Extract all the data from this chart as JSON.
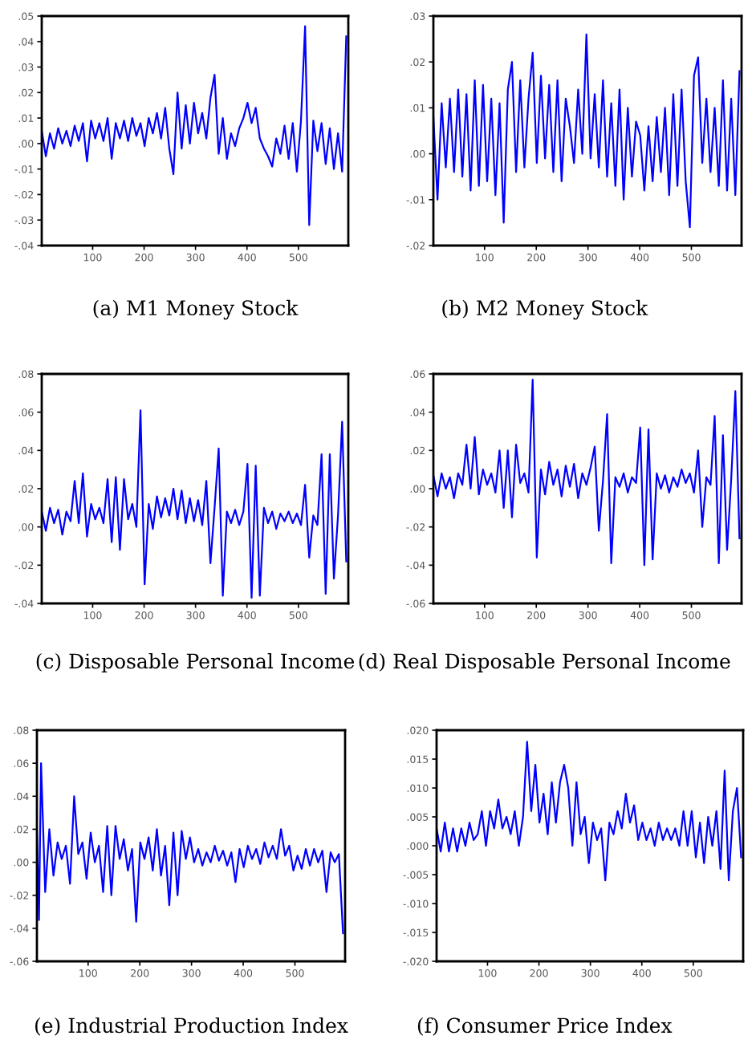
{
  "chart_data": [
    {
      "type": "line",
      "title": "(a) M1 Money Stock",
      "xlim": [
        1,
        597
      ],
      "xticks": [
        100,
        200,
        300,
        400,
        500
      ],
      "ylim": [
        -0.04,
        0.05
      ],
      "yticks": [
        {
          "value": 0.05,
          "label": ".05"
        },
        {
          "value": 0.04,
          "label": ".04"
        },
        {
          "value": 0.03,
          "label": ".03"
        },
        {
          "value": 0.02,
          "label": ".02"
        },
        {
          "value": 0.01,
          "label": ".01"
        },
        {
          "value": 0.0,
          "label": ".00"
        },
        {
          "value": -0.01,
          "label": "-.01"
        },
        {
          "value": -0.02,
          "label": "-.02"
        },
        {
          "value": -0.03,
          "label": "-.03"
        },
        {
          "value": -0.04,
          "label": "-.04"
        }
      ],
      "grid": false,
      "x": [
        1,
        9,
        17,
        25,
        33,
        41,
        49,
        57,
        65,
        73,
        81,
        89,
        97,
        105,
        113,
        121,
        129,
        137,
        145,
        153,
        161,
        169,
        177,
        185,
        193,
        201,
        209,
        217,
        225,
        233,
        241,
        249,
        257,
        265,
        273,
        281,
        289,
        297,
        305,
        313,
        321,
        329,
        337,
        345,
        353,
        361,
        369,
        377,
        385,
        393,
        401,
        409,
        417,
        425,
        433,
        441,
        449,
        457,
        465,
        473,
        481,
        489,
        497,
        505,
        513,
        521,
        529,
        537,
        545,
        553,
        561,
        569,
        577,
        585,
        593
      ],
      "series": [
        {
          "color": "#0000ff",
          "values": [
            0.005,
            -0.005,
            0.004,
            -0.002,
            0.006,
            0.0,
            0.005,
            -0.001,
            0.007,
            0.001,
            0.008,
            -0.007,
            0.009,
            0.002,
            0.008,
            0.001,
            0.01,
            -0.006,
            0.008,
            0.002,
            0.009,
            0.001,
            0.01,
            0.003,
            0.008,
            -0.001,
            0.01,
            0.004,
            0.012,
            0.002,
            0.014,
            -0.002,
            -0.012,
            0.02,
            -0.002,
            0.015,
            0.0,
            0.016,
            0.004,
            0.012,
            0.002,
            0.018,
            0.027,
            -0.004,
            0.01,
            -0.006,
            0.004,
            -0.001,
            0.006,
            0.01,
            0.016,
            0.008,
            0.014,
            0.002,
            -0.002,
            -0.005,
            -0.009,
            0.002,
            -0.004,
            0.007,
            -0.006,
            0.008,
            -0.011,
            0.009,
            0.046,
            -0.032,
            0.009,
            -0.003,
            0.008,
            -0.008,
            0.006,
            -0.01,
            0.004,
            -0.011,
            0.042
          ]
        }
      ]
    },
    {
      "type": "line",
      "title": "(b) M2 Money Stock",
      "xlim": [
        1,
        597
      ],
      "xticks": [
        100,
        200,
        300,
        400,
        500
      ],
      "ylim": [
        -0.02,
        0.03
      ],
      "yticks": [
        {
          "value": 0.03,
          "label": ".03"
        },
        {
          "value": 0.02,
          "label": ".02"
        },
        {
          "value": 0.01,
          "label": ".01"
        },
        {
          "value": 0.0,
          "label": ".00"
        },
        {
          "value": -0.01,
          "label": "-.01"
        },
        {
          "value": -0.02,
          "label": "-.02"
        }
      ],
      "grid": false,
      "x": [
        1,
        9,
        17,
        25,
        33,
        41,
        49,
        57,
        65,
        73,
        81,
        89,
        97,
        105,
        113,
        121,
        129,
        137,
        145,
        153,
        161,
        169,
        177,
        185,
        193,
        201,
        209,
        217,
        225,
        233,
        241,
        249,
        257,
        265,
        273,
        281,
        289,
        297,
        305,
        313,
        321,
        329,
        337,
        345,
        353,
        361,
        369,
        377,
        385,
        393,
        401,
        409,
        417,
        425,
        433,
        441,
        449,
        457,
        465,
        473,
        481,
        489,
        497,
        505,
        513,
        521,
        529,
        537,
        545,
        553,
        561,
        569,
        577,
        585,
        593
      ],
      "series": [
        {
          "color": "#0000ff",
          "values": [
            0.008,
            -0.01,
            0.011,
            -0.003,
            0.012,
            -0.004,
            0.014,
            -0.005,
            0.013,
            -0.008,
            0.016,
            -0.007,
            0.015,
            -0.006,
            0.012,
            -0.009,
            0.011,
            -0.015,
            0.014,
            0.02,
            -0.004,
            0.016,
            -0.003,
            0.012,
            0.022,
            -0.002,
            0.017,
            -0.001,
            0.015,
            -0.004,
            0.016,
            -0.006,
            0.012,
            0.006,
            -0.002,
            0.014,
            0.0,
            0.026,
            -0.001,
            0.013,
            -0.003,
            0.016,
            -0.005,
            0.011,
            -0.007,
            0.014,
            -0.01,
            0.01,
            -0.005,
            0.007,
            0.004,
            -0.008,
            0.006,
            -0.006,
            0.008,
            -0.004,
            0.01,
            -0.009,
            0.013,
            -0.007,
            0.014,
            -0.006,
            -0.016,
            0.017,
            0.021,
            -0.002,
            0.012,
            -0.004,
            0.01,
            -0.007,
            0.016,
            -0.008,
            0.012,
            -0.009,
            0.018
          ]
        }
      ]
    },
    {
      "type": "line",
      "title": "(c) Disposable Personal Income",
      "xlim": [
        1,
        597
      ],
      "xticks": [
        100,
        200,
        300,
        400,
        500
      ],
      "ylim": [
        -0.04,
        0.08
      ],
      "yticks": [
        {
          "value": 0.08,
          "label": ".08"
        },
        {
          "value": 0.06,
          "label": ".06"
        },
        {
          "value": 0.04,
          "label": ".04"
        },
        {
          "value": 0.02,
          "label": ".02"
        },
        {
          "value": 0.0,
          "label": ".00"
        },
        {
          "value": -0.02,
          "label": "-.02"
        },
        {
          "value": -0.04,
          "label": "-.04"
        }
      ],
      "grid": false,
      "x": [
        1,
        9,
        17,
        25,
        33,
        41,
        49,
        57,
        65,
        73,
        81,
        89,
        97,
        105,
        113,
        121,
        129,
        137,
        145,
        153,
        161,
        169,
        177,
        185,
        193,
        201,
        209,
        217,
        225,
        233,
        241,
        249,
        257,
        265,
        273,
        281,
        289,
        297,
        305,
        313,
        321,
        329,
        337,
        345,
        353,
        361,
        369,
        377,
        385,
        393,
        401,
        409,
        417,
        425,
        433,
        441,
        449,
        457,
        465,
        473,
        481,
        489,
        497,
        505,
        513,
        521,
        529,
        537,
        545,
        553,
        561,
        569,
        577,
        585,
        593
      ],
      "series": [
        {
          "color": "#0000ff",
          "values": [
            0.008,
            -0.002,
            0.01,
            0.002,
            0.009,
            -0.004,
            0.008,
            0.003,
            0.024,
            0.002,
            0.028,
            -0.005,
            0.012,
            0.004,
            0.01,
            0.002,
            0.025,
            -0.008,
            0.026,
            -0.012,
            0.025,
            0.004,
            0.012,
            0.0,
            0.061,
            -0.03,
            0.012,
            -0.001,
            0.016,
            0.005,
            0.015,
            0.006,
            0.02,
            0.004,
            0.019,
            0.002,
            0.015,
            0.003,
            0.014,
            0.001,
            0.024,
            -0.019,
            0.01,
            0.041,
            -0.036,
            0.008,
            0.002,
            0.009,
            0.001,
            0.008,
            0.033,
            -0.037,
            0.032,
            -0.036,
            0.01,
            0.002,
            0.008,
            -0.001,
            0.007,
            0.003,
            0.008,
            0.002,
            0.007,
            0.001,
            0.022,
            -0.016,
            0.006,
            0.001,
            0.038,
            -0.035,
            0.038,
            -0.027,
            0.006,
            0.055,
            -0.018
          ]
        }
      ]
    },
    {
      "type": "line",
      "title": "(d) Real Disposable Personal Income",
      "xlim": [
        1,
        597
      ],
      "xticks": [
        100,
        200,
        300,
        400,
        500
      ],
      "ylim": [
        -0.06,
        0.06
      ],
      "yticks": [
        {
          "value": 0.06,
          "label": ".06"
        },
        {
          "value": 0.04,
          "label": ".04"
        },
        {
          "value": 0.02,
          "label": ".02"
        },
        {
          "value": 0.0,
          "label": ".00"
        },
        {
          "value": -0.02,
          "label": "-.02"
        },
        {
          "value": -0.04,
          "label": "-.04"
        },
        {
          "value": -0.06,
          "label": "-.06"
        }
      ],
      "grid": false,
      "x": [
        1,
        9,
        17,
        25,
        33,
        41,
        49,
        57,
        65,
        73,
        81,
        89,
        97,
        105,
        113,
        121,
        129,
        137,
        145,
        153,
        161,
        169,
        177,
        185,
        193,
        201,
        209,
        217,
        225,
        233,
        241,
        249,
        257,
        265,
        273,
        281,
        289,
        297,
        305,
        313,
        321,
        329,
        337,
        345,
        353,
        361,
        369,
        377,
        385,
        393,
        401,
        409,
        417,
        425,
        433,
        441,
        449,
        457,
        465,
        473,
        481,
        489,
        497,
        505,
        513,
        521,
        529,
        537,
        545,
        553,
        561,
        569,
        577,
        585,
        593
      ],
      "series": [
        {
          "color": "#0000ff",
          "values": [
            0.007,
            -0.004,
            0.008,
            0.0,
            0.006,
            -0.005,
            0.008,
            0.002,
            0.023,
            0.0,
            0.027,
            -0.003,
            0.01,
            0.002,
            0.008,
            -0.002,
            0.02,
            -0.01,
            0.02,
            -0.015,
            0.023,
            0.003,
            0.008,
            -0.002,
            0.057,
            -0.036,
            0.01,
            -0.003,
            0.014,
            0.002,
            0.01,
            -0.004,
            0.012,
            0.001,
            0.013,
            -0.005,
            0.008,
            0.002,
            0.011,
            0.022,
            -0.022,
            0.004,
            0.039,
            -0.039,
            0.006,
            0.001,
            0.008,
            -0.002,
            0.006,
            0.003,
            0.032,
            -0.04,
            0.031,
            -0.037,
            0.008,
            0.0,
            0.007,
            -0.002,
            0.006,
            0.001,
            0.01,
            0.003,
            0.008,
            -0.002,
            0.02,
            -0.02,
            0.006,
            0.002,
            0.038,
            -0.039,
            0.028,
            -0.032,
            0.005,
            0.051,
            -0.026
          ]
        }
      ]
    },
    {
      "type": "line",
      "title": "(e) Industrial Production Index",
      "xlim": [
        1,
        597
      ],
      "xticks": [
        100,
        200,
        300,
        400,
        500
      ],
      "ylim": [
        -0.06,
        0.08
      ],
      "yticks": [
        {
          "value": 0.08,
          "label": ".08"
        },
        {
          "value": 0.06,
          "label": ".06"
        },
        {
          "value": 0.04,
          "label": ".04"
        },
        {
          "value": 0.02,
          "label": ".02"
        },
        {
          "value": 0.0,
          "label": ".00"
        },
        {
          "value": -0.02,
          "label": "-.02"
        },
        {
          "value": -0.04,
          "label": "-.04"
        },
        {
          "value": -0.06,
          "label": "-.06"
        }
      ],
      "grid": false,
      "x": [
        1,
        5,
        9,
        17,
        25,
        33,
        41,
        49,
        57,
        65,
        73,
        81,
        89,
        97,
        105,
        113,
        121,
        129,
        137,
        145,
        153,
        161,
        169,
        177,
        185,
        193,
        201,
        209,
        217,
        225,
        233,
        241,
        249,
        257,
        265,
        273,
        281,
        289,
        297,
        305,
        313,
        321,
        329,
        337,
        345,
        353,
        361,
        369,
        377,
        385,
        393,
        401,
        409,
        417,
        425,
        433,
        441,
        449,
        457,
        465,
        473,
        481,
        489,
        497,
        505,
        513,
        521,
        529,
        537,
        545,
        553,
        561,
        569,
        577,
        585,
        593
      ],
      "series": [
        {
          "color": "#0000ff",
          "values": [
            0.02,
            -0.035,
            0.06,
            -0.018,
            0.02,
            -0.008,
            0.012,
            0.002,
            0.01,
            -0.013,
            0.04,
            0.005,
            0.012,
            -0.01,
            0.018,
            0.0,
            0.01,
            -0.018,
            0.022,
            -0.02,
            0.022,
            0.002,
            0.014,
            -0.005,
            0.008,
            -0.036,
            0.012,
            0.002,
            0.015,
            -0.005,
            0.02,
            -0.008,
            0.01,
            -0.026,
            0.018,
            -0.02,
            0.019,
            0.002,
            0.015,
            0.0,
            0.008,
            -0.002,
            0.006,
            0.0,
            0.01,
            0.001,
            0.007,
            -0.002,
            0.006,
            -0.012,
            0.008,
            -0.003,
            0.01,
            0.002,
            0.008,
            -0.001,
            0.012,
            0.003,
            0.01,
            0.002,
            0.02,
            0.004,
            0.01,
            -0.005,
            0.004,
            -0.004,
            0.008,
            -0.002,
            0.008,
            0.0,
            0.007,
            -0.018,
            0.006,
            0.0,
            0.005,
            -0.043
          ]
        }
      ]
    },
    {
      "type": "line",
      "title": "(f) Consumer Price Index",
      "xlim": [
        1,
        597
      ],
      "xticks": [
        100,
        200,
        300,
        400,
        500
      ],
      "ylim": [
        -0.02,
        0.02
      ],
      "yticks": [
        {
          "value": 0.02,
          "label": ".020"
        },
        {
          "value": 0.015,
          "label": ".015"
        },
        {
          "value": 0.01,
          "label": ".010"
        },
        {
          "value": 0.005,
          "label": ".005"
        },
        {
          "value": 0.0,
          "label": ".000"
        },
        {
          "value": -0.005,
          "label": "-.005"
        },
        {
          "value": -0.01,
          "label": "-.010"
        },
        {
          "value": -0.015,
          "label": "-.015"
        },
        {
          "value": -0.02,
          "label": "-.020"
        }
      ],
      "grid": false,
      "x": [
        1,
        9,
        17,
        25,
        33,
        41,
        49,
        57,
        65,
        73,
        81,
        89,
        97,
        105,
        113,
        121,
        129,
        137,
        145,
        153,
        161,
        169,
        177,
        185,
        193,
        201,
        209,
        217,
        225,
        233,
        241,
        249,
        257,
        265,
        273,
        281,
        289,
        297,
        305,
        313,
        321,
        329,
        337,
        345,
        353,
        361,
        369,
        377,
        385,
        393,
        401,
        409,
        417,
        425,
        433,
        441,
        449,
        457,
        465,
        473,
        481,
        489,
        497,
        505,
        513,
        521,
        529,
        537,
        545,
        553,
        561,
        569,
        577,
        585,
        593
      ],
      "series": [
        {
          "color": "#0000ff",
          "values": [
            0.003,
            -0.001,
            0.004,
            -0.001,
            0.003,
            -0.001,
            0.003,
            0.0,
            0.004,
            0.001,
            0.002,
            0.006,
            0.0,
            0.006,
            0.003,
            0.008,
            0.003,
            0.005,
            0.002,
            0.006,
            0.0,
            0.005,
            0.018,
            0.006,
            0.014,
            0.004,
            0.009,
            0.002,
            0.011,
            0.004,
            0.011,
            0.014,
            0.01,
            0.0,
            0.011,
            0.002,
            0.005,
            -0.003,
            0.004,
            0.001,
            0.003,
            -0.006,
            0.004,
            0.002,
            0.006,
            0.003,
            0.009,
            0.004,
            0.007,
            0.001,
            0.004,
            0.001,
            0.003,
            0.0,
            0.004,
            0.001,
            0.003,
            0.001,
            0.003,
            0.0,
            0.006,
            0.0,
            0.006,
            -0.002,
            0.004,
            -0.003,
            0.005,
            0.0,
            0.006,
            -0.004,
            0.013,
            -0.006,
            0.006,
            0.01,
            -0.002
          ]
        }
      ]
    }
  ]
}
